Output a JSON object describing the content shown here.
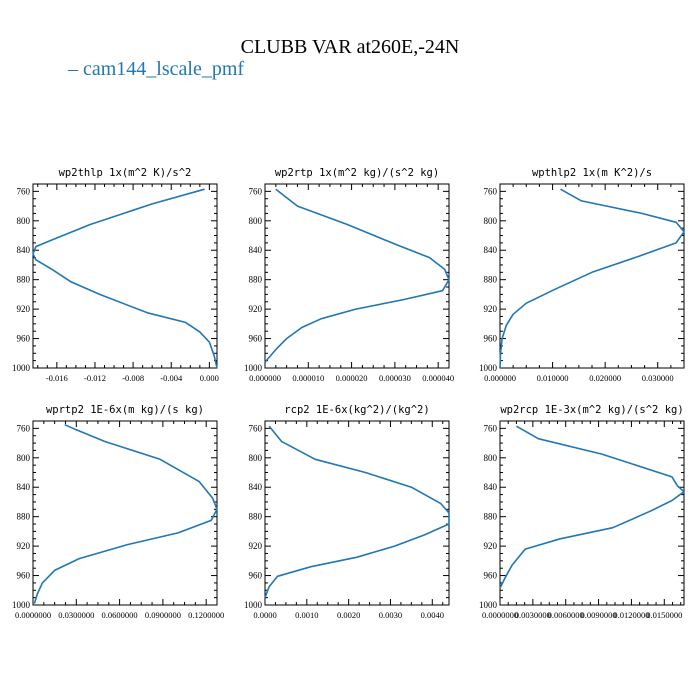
{
  "title": "CLUBB VAR at260E,-24N",
  "legend": {
    "series_name": "cam144_lscale_pmf",
    "color": "#1f77b4"
  },
  "chart_data": [
    {
      "type": "line",
      "title": "wp2thlp  1x(m^2 K)/s^2",
      "xlim": [
        -0.0185,
        0.0008
      ],
      "ylim": [
        1000,
        750
      ],
      "y_ticks": [
        760,
        800,
        840,
        880,
        920,
        960,
        1000
      ],
      "x_ticks": [
        -0.016,
        -0.012,
        -0.008,
        -0.004,
        0.0
      ],
      "x_tick_labels": [
        "-0.016",
        "-0.012",
        "-0.008",
        "-0.004",
        "0.000"
      ],
      "series": [
        {
          "x": [
            -0.0005,
            -0.006,
            -0.0125,
            -0.0165,
            -0.0182,
            -0.0185,
            -0.0182,
            -0.0165,
            -0.0145,
            -0.0115,
            -0.0065,
            -0.0025,
            -0.001,
            0.0,
            0.0005,
            0.0008
          ],
          "y": [
            757,
            777,
            805,
            826,
            835,
            845,
            853,
            866,
            883,
            900,
            925,
            938,
            951,
            965,
            983,
            1000
          ]
        }
      ]
    },
    {
      "type": "line",
      "title": "wp2rtp  1x(m^2 kg)/(s^2 kg)",
      "xlim": [
        0.0,
        4.25e-05
      ],
      "ylim": [
        1000,
        750
      ],
      "y_ticks": [
        760,
        800,
        840,
        880,
        920,
        960,
        1000
      ],
      "x_ticks": [
        0.0,
        1e-05,
        2e-05,
        3e-05,
        4e-05
      ],
      "x_tick_labels": [
        "0.000000",
        "0.000010",
        "0.000020",
        "0.000030",
        "0.000040"
      ],
      "series": [
        {
          "x": [
            2.5e-06,
            7.5e-06,
            1.9e-05,
            3.1e-05,
            3.8e-05,
            4.15e-05,
            4.25e-05,
            4.1e-05,
            3.2e-05,
            2.1e-05,
            1.3e-05,
            8.5e-06,
            5e-06,
            2.5e-06,
            0.0
          ],
          "y": [
            757,
            780,
            805,
            834,
            850,
            866,
            880,
            895,
            907,
            920,
            933,
            945,
            960,
            975,
            992
          ]
        }
      ]
    },
    {
      "type": "line",
      "title": "wpthlp2  1x(m K^2)/s",
      "xlim": [
        0.0,
        0.035
      ],
      "ylim": [
        1000,
        750
      ],
      "y_ticks": [
        760,
        800,
        840,
        880,
        920,
        960,
        1000
      ],
      "x_ticks": [
        0.0,
        0.01,
        0.02,
        0.03
      ],
      "x_tick_labels": [
        "0.000000",
        "0.010000",
        "0.020000",
        "0.030000"
      ],
      "series": [
        {
          "x": [
            0.0115,
            0.0155,
            0.027,
            0.0335,
            0.035,
            0.0335,
            0.0265,
            0.0175,
            0.0105,
            0.005,
            0.0025,
            0.0012,
            0.0004,
            0.0001,
            0.0
          ],
          "y": [
            757,
            773,
            790,
            802,
            815,
            830,
            848,
            870,
            893,
            912,
            927,
            942,
            960,
            980,
            1000
          ]
        }
      ]
    },
    {
      "type": "line",
      "title": "wprtp2  1E-6x(m kg)/(s kg)",
      "xlim": [
        0.0,
        0.1275
      ],
      "ylim": [
        1000,
        750
      ],
      "y_ticks": [
        760,
        800,
        840,
        880,
        920,
        960,
        1000
      ],
      "x_ticks": [
        0.0,
        0.03,
        0.06,
        0.09,
        0.12
      ],
      "x_tick_labels": [
        "0.0000000",
        "0.0300000",
        "0.0600000",
        "0.0900000",
        "0.1200000"
      ],
      "series": [
        {
          "x": [
            0.022,
            0.03,
            0.05,
            0.088,
            0.115,
            0.1245,
            0.1275,
            0.1235,
            0.1005,
            0.0655,
            0.032,
            0.015,
            0.0065,
            0.003,
            0.001
          ],
          "y": [
            755,
            762,
            778,
            802,
            832,
            855,
            870,
            885,
            902,
            918,
            937,
            953,
            970,
            985,
            998
          ]
        }
      ]
    },
    {
      "type": "line",
      "title": "rcp2  1E-6x(kg^2)/(kg^2)",
      "xlim": [
        0.0,
        0.0044
      ],
      "ylim": [
        1000,
        750
      ],
      "y_ticks": [
        760,
        800,
        840,
        880,
        920,
        960,
        1000
      ],
      "x_ticks": [
        0.0,
        0.001,
        0.002,
        0.003,
        0.004
      ],
      "x_tick_labels": [
        "0.0000",
        "0.0010",
        "0.0020",
        "0.0030",
        "0.0040"
      ],
      "series": [
        {
          "x": [
            0.0001,
            0.0004,
            0.0012,
            0.0024,
            0.0035,
            0.0042,
            0.0044,
            0.0044,
            0.0038,
            0.0031,
            0.0022,
            0.0011,
            0.0003,
            0.0001,
            0.0
          ],
          "y": [
            757,
            778,
            802,
            820,
            840,
            862,
            875,
            890,
            905,
            920,
            935,
            948,
            961,
            975,
            990
          ]
        }
      ]
    },
    {
      "type": "line",
      "title": "wp2rcp  1E-3x(m^2 kg)/(s^2 kg)",
      "xlim": [
        0.0,
        0.0168
      ],
      "ylim": [
        1000,
        750
      ],
      "y_ticks": [
        760,
        800,
        840,
        880,
        920,
        960,
        1000
      ],
      "x_ticks": [
        0.0,
        0.003,
        0.006,
        0.009,
        0.012,
        0.015
      ],
      "x_tick_labels": [
        "0.0000000",
        "0.0030000",
        "0.0060000",
        "0.0090000",
        "0.0120000",
        "0.0150000"
      ],
      "series": [
        {
          "x": [
            0.0015,
            0.0035,
            0.0093,
            0.0157,
            0.0162,
            0.0168,
            0.0157,
            0.0138,
            0.0103,
            0.0055,
            0.0023,
            0.0011,
            0.0005,
            0.0
          ],
          "y": [
            757,
            774,
            795,
            826,
            838,
            846,
            858,
            872,
            895,
            910,
            924,
            946,
            962,
            977
          ]
        }
      ]
    }
  ]
}
